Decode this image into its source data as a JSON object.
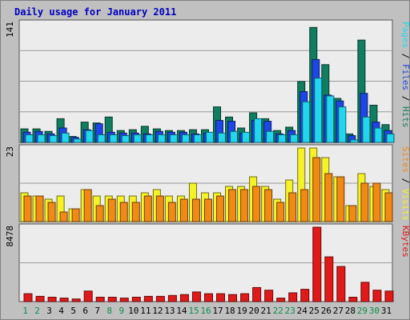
{
  "title": "Daily usage for January 2011",
  "colors": {
    "frame_bg": "#c0c0c0",
    "plot_bg": "#ececec",
    "title": "#0000c0",
    "grid": "#999999",
    "hits": "#117d5f",
    "files": "#1c46e6",
    "pages": "#23d6f0",
    "visits": "#f6f228",
    "sites": "#f08a14",
    "kbytes": "#e11919",
    "weekend_day": "#0c8d4c",
    "weekday": "#000000"
  },
  "chart_data": [
    {
      "type": "bar",
      "panel": "hits-files-pages",
      "categories": [
        "1",
        "2",
        "3",
        "4",
        "5",
        "6",
        "7",
        "8",
        "9",
        "10",
        "11",
        "12",
        "13",
        "14",
        "15",
        "16",
        "17",
        "18",
        "19",
        "20",
        "21",
        "22",
        "23",
        "24",
        "25",
        "26",
        "27",
        "28",
        "29",
        "30",
        "31"
      ],
      "weekend_days": [
        "1",
        "2",
        "8",
        "9",
        "15",
        "16",
        "22",
        "23",
        "29",
        "30"
      ],
      "ymax_label": "141",
      "ylim": [
        0,
        141
      ],
      "series": [
        {
          "name": "Hits",
          "values": [
            16,
            16,
            13,
            28,
            7,
            24,
            23,
            30,
            14,
            15,
            19,
            16,
            14,
            14,
            15,
            15,
            42,
            30,
            17,
            35,
            28,
            14,
            18,
            72,
            136,
            92,
            52,
            10,
            121,
            44,
            21
          ]
        },
        {
          "name": "Files",
          "values": [
            12,
            13,
            10,
            17,
            6,
            15,
            22,
            12,
            11,
            11,
            10,
            13,
            12,
            12,
            10,
            11,
            26,
            25,
            11,
            26,
            25,
            10,
            14,
            60,
            98,
            56,
            49,
            8,
            58,
            24,
            14
          ]
        },
        {
          "name": "Pages",
          "values": [
            9,
            9,
            8,
            11,
            4,
            14,
            9,
            9,
            8,
            9,
            9,
            9,
            9,
            9,
            9,
            12,
            11,
            13,
            12,
            28,
            13,
            9,
            9,
            48,
            76,
            55,
            42,
            3,
            30,
            17,
            10
          ]
        }
      ],
      "legend": [
        "Pages",
        "Files",
        "Hits"
      ],
      "legend_position": "right"
    },
    {
      "type": "bar",
      "panel": "visits-sites",
      "categories": [
        "1",
        "2",
        "3",
        "4",
        "5",
        "6",
        "7",
        "8",
        "9",
        "10",
        "11",
        "12",
        "13",
        "14",
        "15",
        "16",
        "17",
        "18",
        "19",
        "20",
        "21",
        "22",
        "23",
        "24",
        "25",
        "26",
        "27",
        "28",
        "29",
        "30",
        "31"
      ],
      "ymax_label": "23",
      "ylim": [
        0,
        23
      ],
      "series": [
        {
          "name": "Visits",
          "values": [
            9,
            8,
            7,
            8,
            4,
            10,
            8,
            8,
            8,
            8,
            9,
            10,
            8,
            8,
            12,
            9,
            9,
            11,
            11,
            14,
            11,
            7,
            13,
            23,
            23,
            20,
            14,
            5,
            15,
            11,
            10
          ]
        },
        {
          "name": "Sites",
          "values": [
            8,
            8,
            6,
            3,
            4,
            10,
            5,
            7,
            6,
            6,
            8,
            8,
            6,
            7,
            7,
            7,
            8,
            10,
            10,
            11,
            10,
            6,
            9,
            10,
            20,
            15,
            14,
            5,
            12,
            12,
            9
          ]
        }
      ],
      "legend": [
        "Sites",
        "Visits"
      ],
      "legend_position": "right"
    },
    {
      "type": "bar",
      "panel": "kbytes",
      "categories": [
        "1",
        "2",
        "3",
        "4",
        "5",
        "6",
        "7",
        "8",
        "9",
        "10",
        "11",
        "12",
        "13",
        "14",
        "15",
        "16",
        "17",
        "18",
        "19",
        "20",
        "21",
        "22",
        "23",
        "24",
        "25",
        "26",
        "27",
        "28",
        "29",
        "30",
        "31"
      ],
      "ymax_label": "8478",
      "ylim": [
        0,
        8478
      ],
      "series": [
        {
          "name": "KBytes",
          "values": [
            900,
            600,
            500,
            400,
            300,
            1200,
            500,
            500,
            400,
            500,
            600,
            600,
            700,
            800,
            1100,
            900,
            900,
            800,
            900,
            1600,
            1300,
            400,
            1000,
            1400,
            8478,
            5100,
            4000,
            500,
            2200,
            1300,
            1200
          ]
        }
      ],
      "legend": [
        "KBytes"
      ],
      "legend_position": "right"
    }
  ]
}
